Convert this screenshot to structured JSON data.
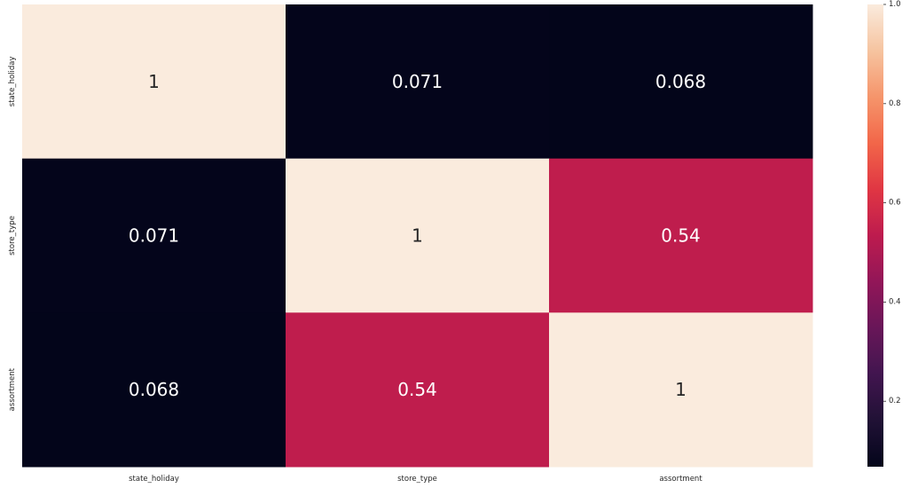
{
  "chart_data": {
    "type": "heatmap",
    "title": "",
    "xlabel": "",
    "ylabel": "",
    "x_categories": [
      "state_holiday",
      "store_type",
      "assortment"
    ],
    "y_categories": [
      "state_holiday",
      "store_type",
      "assortment"
    ],
    "values": [
      [
        1,
        0.071,
        0.068
      ],
      [
        0.071,
        1,
        0.54
      ],
      [
        0.068,
        0.54,
        1
      ]
    ],
    "annotations": [
      [
        "1",
        "0.071",
        "0.068"
      ],
      [
        "0.071",
        "1",
        "0.54"
      ],
      [
        "0.068",
        "0.54",
        "1"
      ]
    ],
    "colormap": "rocket",
    "colorbar": {
      "range": [
        0.068,
        1.0
      ],
      "ticks": [
        0.2,
        0.4,
        0.6,
        0.8,
        1.0
      ],
      "tick_labels": [
        "0.2",
        "0.4",
        "0.6",
        "0.8",
        "1.0"
      ]
    }
  }
}
